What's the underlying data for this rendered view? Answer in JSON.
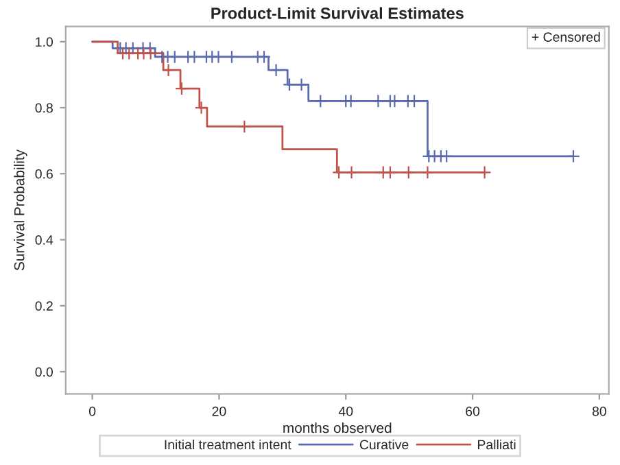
{
  "chart_data": {
    "type": "step",
    "title": "Product-Limit Survival Estimates",
    "xlabel": "months observed",
    "ylabel": "Survival Probability",
    "legend_title": "Initial treatment intent",
    "legend": "bottom",
    "xlim": [
      -4.2,
      81.5
    ],
    "ylim": [
      -0.067,
      1.046
    ],
    "xticks": [
      0,
      20,
      40,
      60,
      80
    ],
    "yticks": [
      {
        "value": 0,
        "label": "0.0"
      },
      {
        "value": 0.2,
        "label": "0.2"
      },
      {
        "value": 0.4,
        "label": "0.4"
      },
      {
        "value": 0.6,
        "label": "0.6"
      },
      {
        "value": 0.8,
        "label": "0.8"
      },
      {
        "value": 1,
        "label": "1.0"
      }
    ],
    "grid": false,
    "annotations": [
      "+ Censored"
    ],
    "series": [
      {
        "name": "Curative",
        "color": "#5a6ab0",
        "x": [
          0,
          3.2,
          9.9,
          27.8,
          30.8,
          34.1,
          52.9,
          75.9
        ],
        "values": [
          1.0,
          0.98,
          0.954,
          0.914,
          0.87,
          0.82,
          0.653,
          0.653
        ]
      },
      {
        "name": "Palliati",
        "color": "#c0524a",
        "x": [
          0,
          4.0,
          11.2,
          13.9,
          16.9,
          18.1,
          30.0,
          38.6,
          61.9
        ],
        "values": [
          1.0,
          0.965,
          0.914,
          0.858,
          0.8,
          0.743,
          0.674,
          0.604,
          0.604
        ]
      },
      {
        "type": "scatter",
        "marker": "cross",
        "x": [
          4.4,
          5.3,
          6.4,
          8.0,
          9.1,
          11.0,
          11.9,
          13.0,
          15.1,
          16.1,
          18.0,
          18.9,
          19.9,
          22.0,
          26.1,
          27.1,
          29.0,
          31.1,
          33.0,
          36.0,
          40.0,
          40.8,
          45.1,
          47.0,
          47.7,
          49.8,
          50.8,
          53.1,
          54.0,
          55.0,
          55.9,
          75.9,
          4.8,
          5.8,
          7.2,
          8.1,
          9.2,
          12.0,
          14.1,
          17.2,
          24.0,
          38.9,
          40.9,
          45.9,
          47.0,
          49.9,
          52.9,
          61.9
        ],
        "values": [
          0.98,
          0.98,
          0.98,
          0.98,
          0.98,
          0.954,
          0.954,
          0.954,
          0.954,
          0.954,
          0.954,
          0.954,
          0.954,
          0.954,
          0.954,
          0.954,
          0.914,
          0.87,
          0.87,
          0.82,
          0.82,
          0.82,
          0.82,
          0.82,
          0.82,
          0.82,
          0.82,
          0.653,
          0.653,
          0.653,
          0.653,
          0.653,
          0.965,
          0.965,
          0.965,
          0.965,
          0.965,
          0.914,
          0.858,
          0.8,
          0.743,
          0.604,
          0.604,
          0.604,
          0.604,
          0.604,
          0.604,
          0.604
        ],
        "colors": [
          "#5a6ab0",
          "#5a6ab0",
          "#5a6ab0",
          "#5a6ab0",
          "#5a6ab0",
          "#5a6ab0",
          "#5a6ab0",
          "#5a6ab0",
          "#5a6ab0",
          "#5a6ab0",
          "#5a6ab0",
          "#5a6ab0",
          "#5a6ab0",
          "#5a6ab0",
          "#5a6ab0",
          "#5a6ab0",
          "#5a6ab0",
          "#5a6ab0",
          "#5a6ab0",
          "#5a6ab0",
          "#5a6ab0",
          "#5a6ab0",
          "#5a6ab0",
          "#5a6ab0",
          "#5a6ab0",
          "#5a6ab0",
          "#5a6ab0",
          "#5a6ab0",
          "#5a6ab0",
          "#5a6ab0",
          "#5a6ab0",
          "#5a6ab0",
          "#c0524a",
          "#c0524a",
          "#c0524a",
          "#c0524a",
          "#c0524a",
          "#c0524a",
          "#c0524a",
          "#c0524a",
          "#c0524a",
          "#c0524a",
          "#c0524a",
          "#c0524a",
          "#c0524a",
          "#c0524a",
          "#c0524a",
          "#c0524a"
        ]
      }
    ]
  }
}
